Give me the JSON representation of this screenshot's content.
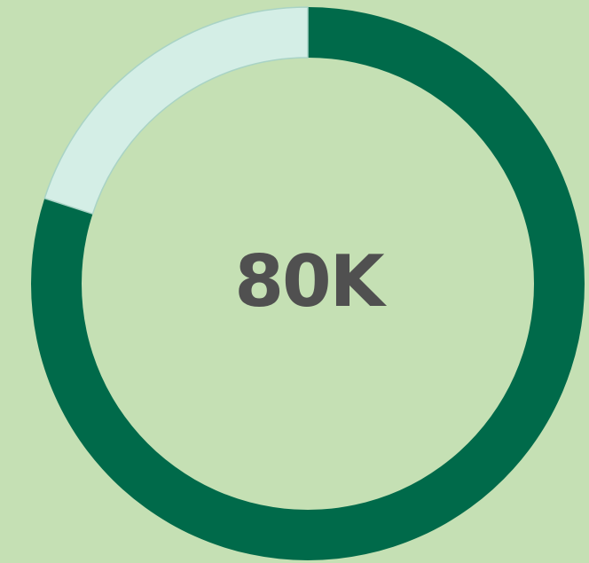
{
  "chart_data": {
    "type": "pie",
    "variant": "donut",
    "center_label": "80K",
    "slices": [
      {
        "label": "",
        "value": 80,
        "color": "#006a4a"
      },
      {
        "label": "",
        "value": 20,
        "color": "#d4eee6"
      }
    ],
    "start_position": "top",
    "direction": "clockwise",
    "background": "#c5e0b4",
    "ring_outline": "#a9d3c5"
  }
}
